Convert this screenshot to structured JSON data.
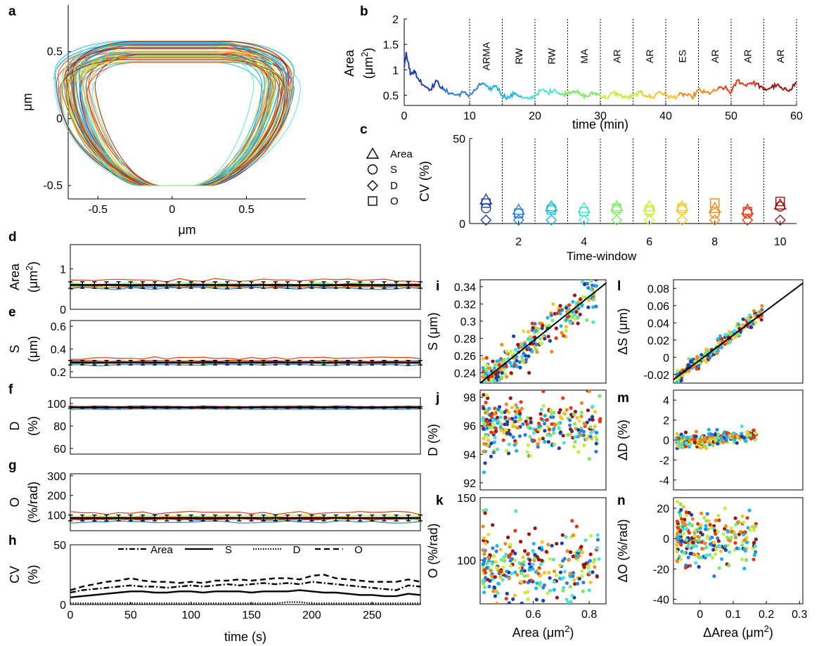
{
  "panel_letters": [
    "a",
    "b",
    "c",
    "d",
    "e",
    "f",
    "g",
    "h",
    "i",
    "j",
    "k",
    "l",
    "m",
    "n"
  ],
  "chart_data": [
    {
      "id": "a",
      "type": "line",
      "title": "",
      "xlabel": "μm",
      "ylabel": "μm",
      "xlim": [
        -0.7,
        0.9
      ],
      "ylim": [
        -0.6,
        0.85
      ],
      "xticks": [
        "-0.5",
        "0",
        "0.5"
      ],
      "yticks": [
        "-0.5",
        "0",
        "0.5"
      ],
      "description_series": "cell contour outlines colored by time window",
      "outline_count": 60,
      "outline_params": {
        "w_top_range": [
          0.52,
          0.68
        ],
        "w_bot_range": [
          0.27,
          0.34
        ],
        "y_top_range": [
          0.3,
          0.46
        ],
        "bulge_range": [
          0.1,
          0.38
        ],
        "center_shift_range": [
          -0.04,
          0.08
        ],
        "y_bottom": -0.5
      }
    },
    {
      "id": "b",
      "type": "line",
      "xlabel": "time (min)",
      "ylabel": "Area (μm²)",
      "ylabel_parts": [
        "Area",
        "(μm",
        "2",
        ")"
      ],
      "xlim": [
        0,
        60
      ],
      "ylim": [
        0.3,
        2.0
      ],
      "xticks": [
        0,
        10,
        20,
        30,
        40,
        50,
        60
      ],
      "yticks": [
        0.5,
        1,
        1.5,
        2
      ],
      "ytick_labels": [
        "0.5",
        "1",
        "1.5",
        "2"
      ],
      "window_boundaries": [
        10,
        15,
        20,
        25,
        30,
        35,
        40,
        45,
        50,
        55,
        60
      ],
      "window_labels": [
        "ARMA",
        "RW",
        "RW",
        "MA",
        "AR",
        "AR",
        "ES",
        "AR",
        "AR",
        "AR"
      ],
      "x": [
        0,
        0.3,
        0.6,
        1,
        1.5,
        2,
        3,
        4,
        5,
        6,
        7,
        8,
        9,
        10,
        11,
        12,
        13,
        14,
        15,
        16,
        17,
        18,
        19,
        20,
        21,
        22,
        23,
        24,
        25,
        26,
        27,
        28,
        29,
        30,
        31,
        32,
        33,
        34,
        35,
        36,
        37,
        38,
        39,
        40,
        41,
        42,
        43,
        44,
        45,
        46,
        47,
        48,
        49,
        50,
        51,
        52,
        53,
        54,
        55,
        56,
        57,
        58,
        59,
        60
      ],
      "values": [
        1.05,
        1.35,
        1.15,
        0.9,
        1.0,
        0.85,
        0.7,
        0.62,
        0.78,
        0.6,
        0.55,
        0.5,
        0.55,
        0.5,
        0.62,
        0.75,
        0.6,
        0.7,
        0.5,
        0.45,
        0.55,
        0.45,
        0.42,
        0.5,
        0.6,
        0.55,
        0.62,
        0.5,
        0.55,
        0.6,
        0.5,
        0.48,
        0.55,
        0.5,
        0.45,
        0.55,
        0.5,
        0.45,
        0.48,
        0.55,
        0.5,
        0.45,
        0.58,
        0.5,
        0.45,
        0.5,
        0.52,
        0.45,
        0.6,
        0.55,
        0.55,
        0.62,
        0.65,
        0.55,
        0.8,
        0.7,
        0.75,
        0.72,
        0.6,
        0.65,
        0.7,
        0.6,
        0.62,
        0.75
      ]
    },
    {
      "id": "c",
      "type": "scatter",
      "xlabel": "Time-window",
      "ylabel": "CV (%)",
      "xlim": [
        0.5,
        10.5
      ],
      "ylim": [
        0,
        50
      ],
      "xticks": [
        2,
        4,
        6,
        8,
        10
      ],
      "yticks": [
        0,
        50
      ],
      "legend": [
        "Area",
        "S",
        "D",
        "O"
      ],
      "legend_markers": [
        "triangle",
        "circle",
        "diamond",
        "square"
      ],
      "series": [
        {
          "name": "Area",
          "values": [
            14,
            8,
            10,
            9,
            10,
            10,
            10,
            9,
            8,
            11
          ]
        },
        {
          "name": "S",
          "values": [
            9,
            6,
            9,
            7,
            8,
            7,
            8,
            6,
            6,
            10
          ]
        },
        {
          "name": "D",
          "values": [
            2,
            2,
            2,
            2,
            2,
            2,
            2,
            2,
            2,
            2
          ]
        },
        {
          "name": "O",
          "values": [
            12,
            6,
            8,
            7,
            9,
            8,
            9,
            12,
            7,
            13
          ]
        }
      ]
    },
    {
      "id": "d",
      "type": "line",
      "ylabel": "Area (μm²)",
      "ylabel_parts": [
        "Area",
        "(μm",
        "2",
        ")"
      ],
      "xlim": [
        0,
        290
      ],
      "ylim": [
        0,
        1.6
      ],
      "yticks": [
        0,
        0.5,
        1
      ],
      "ytick_labels": [
        "0",
        "",
        "1"
      ],
      "mean": 0.6,
      "band": 0.08,
      "upper_trace": 0.72,
      "lower_trace": 0.52
    },
    {
      "id": "e",
      "type": "line",
      "ylabel": "S (μm)",
      "ylabel_parts": [
        "S",
        "(μm)"
      ],
      "xlim": [
        0,
        290
      ],
      "ylim": [
        0.15,
        0.65
      ],
      "yticks": [
        0.2,
        0.4,
        0.6
      ],
      "ytick_labels": [
        "0.2",
        "0.4",
        "0.6"
      ],
      "mean": 0.28,
      "band": 0.02,
      "upper_trace": 0.32,
      "lower_trace": 0.26
    },
    {
      "id": "f",
      "type": "line",
      "ylabel": "D (%)",
      "ylabel_parts": [
        "D",
        "(%)"
      ],
      "xlim": [
        0,
        290
      ],
      "ylim": [
        55,
        105
      ],
      "yticks": [
        60,
        80,
        100
      ],
      "ytick_labels": [
        "60",
        "80",
        "100"
      ],
      "mean": 96.5,
      "band": 0.7,
      "upper_trace": 97.5,
      "lower_trace": 95.0
    },
    {
      "id": "g",
      "type": "line",
      "ylabel": "O (%/rad)",
      "ylabel_parts": [
        "O",
        "(%/rad)"
      ],
      "xlim": [
        0,
        290
      ],
      "ylim": [
        20,
        310
      ],
      "yticks": [
        100,
        200,
        300
      ],
      "ytick_labels": [
        "100",
        "200",
        "300"
      ],
      "mean": 85,
      "band": 15,
      "upper_trace": 110,
      "lower_trace": 65
    },
    {
      "id": "h",
      "type": "line",
      "xlabel": "time (s)",
      "ylabel": "CV (%)",
      "ylabel_parts": [
        "CV",
        "(%)"
      ],
      "xlim": [
        0,
        290
      ],
      "ylim": [
        0,
        50
      ],
      "xticks": [
        0,
        50,
        100,
        150,
        200,
        250
      ],
      "yticks": [
        0,
        50
      ],
      "x": [
        0,
        10,
        20,
        30,
        40,
        50,
        60,
        70,
        80,
        90,
        100,
        110,
        120,
        130,
        140,
        150,
        160,
        170,
        180,
        190,
        200,
        210,
        220,
        230,
        240,
        250,
        260,
        270,
        280,
        290
      ],
      "series": [
        {
          "name": "Area",
          "style": "dashdot",
          "values": [
            10,
            12,
            13,
            14,
            15,
            16,
            15,
            15,
            14,
            15,
            16,
            15,
            16,
            17,
            16,
            17,
            18,
            17,
            18,
            17,
            19,
            18,
            17,
            16,
            15,
            14,
            13,
            12,
            16,
            15
          ]
        },
        {
          "name": "S",
          "style": "solid",
          "values": [
            6,
            7,
            8,
            9,
            10,
            11,
            11,
            10,
            10,
            11,
            11,
            10,
            11,
            11,
            11,
            10,
            11,
            11,
            11,
            12,
            11,
            10,
            10,
            9,
            8,
            8,
            7,
            7,
            9,
            8
          ]
        },
        {
          "name": "D",
          "style": "dotted",
          "values": [
            1,
            1,
            1,
            1,
            1,
            1,
            1,
            1,
            1,
            1,
            1,
            1,
            1,
            1,
            1,
            1,
            1,
            1,
            2,
            2,
            1,
            1,
            1,
            1,
            1,
            1,
            1,
            1,
            1,
            1
          ]
        },
        {
          "name": "O",
          "style": "dashed",
          "values": [
            12,
            15,
            17,
            19,
            20,
            22,
            20,
            19,
            19,
            18,
            19,
            18,
            20,
            20,
            21,
            20,
            21,
            22,
            22,
            21,
            24,
            25,
            22,
            21,
            20,
            19,
            19,
            19,
            21,
            19
          ]
        }
      ]
    },
    {
      "id": "i",
      "type": "scatter",
      "ylabel": "S (μm)",
      "xlim": [
        0.41,
        0.86
      ],
      "ylim": [
        0.228,
        0.348
      ],
      "yticks": [
        0.24,
        0.26,
        0.28,
        0.3,
        0.32,
        0.34
      ],
      "ytick_labels": [
        "0.24",
        "0.26",
        "0.28",
        "0.3",
        "0.32",
        "0.34"
      ],
      "fit_line": [
        [
          0.41,
          0.228
        ],
        [
          0.86,
          0.344
        ]
      ],
      "point_model": {
        "count": 300,
        "slope": 0.258,
        "intercept": 0.122,
        "noise": 0.012,
        "x_range": [
          0.42,
          0.84
        ]
      }
    },
    {
      "id": "j",
      "type": "scatter",
      "ylabel": "D (%)",
      "xlim": [
        0.41,
        0.86
      ],
      "ylim": [
        91.5,
        98.5
      ],
      "yticks": [
        92,
        94,
        96,
        98
      ],
      "ytick_labels": [
        "92",
        "94",
        "96",
        "98"
      ],
      "point_model": {
        "count": 300,
        "center": 96.0,
        "noise": 0.9,
        "x_range": [
          0.42,
          0.84
        ]
      }
    },
    {
      "id": "k",
      "type": "scatter",
      "xlabel": "Area (μm²)",
      "ylabel": "O (%/rad)",
      "xlim": [
        0.41,
        0.86
      ],
      "ylim": [
        65,
        150
      ],
      "xticks": [
        0.6,
        0.8
      ],
      "xtick_labels": [
        "0.6",
        "0.8"
      ],
      "yticks": [
        100,
        150
      ],
      "ytick_labels": [
        "100",
        "150"
      ],
      "point_model": {
        "count": 300,
        "center": 95,
        "noise": 14,
        "x_range": [
          0.42,
          0.84
        ]
      }
    },
    {
      "id": "l",
      "type": "scatter",
      "ylabel": "ΔS (μm)",
      "xlim": [
        -0.08,
        0.31
      ],
      "ylim": [
        -0.03,
        0.09
      ],
      "yticks": [
        -0.02,
        0,
        0.02,
        0.04,
        0.06,
        0.08
      ],
      "ytick_labels": [
        "-0.02",
        "0",
        "0.02",
        "0.04",
        "0.06",
        "0.08"
      ],
      "fit_line": [
        [
          -0.08,
          -0.026
        ],
        [
          0.31,
          0.086
        ]
      ],
      "point_model": {
        "count": 250,
        "slope": 0.288,
        "intercept": -0.003,
        "noise": 0.004,
        "x_range": [
          -0.07,
          0.19
        ]
      }
    },
    {
      "id": "m",
      "type": "scatter",
      "ylabel": "ΔD (%)",
      "xlim": [
        -0.08,
        0.31
      ],
      "ylim": [
        -5,
        5
      ],
      "yticks": [
        -4,
        -2,
        0,
        2,
        4
      ],
      "ytick_labels": [
        "-4",
        "-2",
        "0",
        "2",
        "4"
      ],
      "point_model": {
        "count": 250,
        "slope": 3.0,
        "intercept": 0.0,
        "noise": 0.35,
        "x_range": [
          -0.07,
          0.17
        ]
      }
    },
    {
      "id": "n",
      "type": "scatter",
      "xlabel": "ΔArea (μm²)",
      "ylabel": "ΔO (%/rad)",
      "xlim": [
        -0.08,
        0.31
      ],
      "ylim": [
        -43,
        27
      ],
      "xticks": [
        0,
        0.1,
        0.2,
        0.3
      ],
      "xtick_labels": [
        "0",
        "0.1",
        "0.2",
        "0.3"
      ],
      "yticks": [
        -40,
        -20,
        0,
        20
      ],
      "ytick_labels": [
        "-40",
        "-20",
        "0",
        "20"
      ],
      "point_model": {
        "count": 250,
        "center": 0,
        "noise": 8,
        "x_range": [
          -0.07,
          0.17
        ]
      }
    }
  ],
  "colors": {
    "windows": [
      "#1f3fa8",
      "#2c7fe0",
      "#1fb6e6",
      "#52e0d2",
      "#7de86a",
      "#c7ee3c",
      "#f3c52a",
      "#f08a1a",
      "#e03a18",
      "#9b1414"
    ],
    "black": "#000000",
    "axis": "#000000"
  }
}
